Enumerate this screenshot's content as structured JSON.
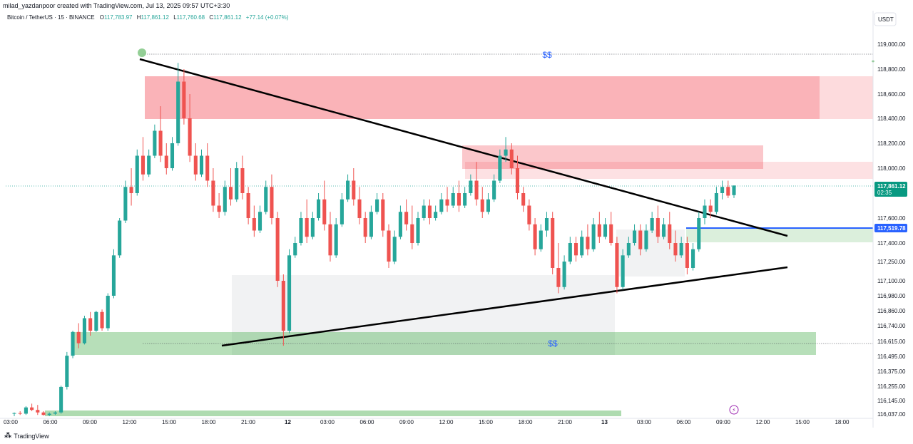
{
  "caption": "milad_yazdanpoor created with TradingView.com, Jul 13, 2025 09:57 UTC+3:30",
  "legend": {
    "symbol": "Bitcoin / TetherUS · 15 · BINANCE",
    "o_label": "O",
    "o": "117,783.97",
    "h_label": "H",
    "h": "117,861.12",
    "l_label": "L",
    "l": "117,760.68",
    "c_label": "C",
    "c": "117,861.12",
    "chg": "+77.14 (+0.07%)"
  },
  "currency": "USDT",
  "price_tag": {
    "price": "117,861.12",
    "countdown": "02:35"
  },
  "blue_line_tag": "117,519.78",
  "annotations": {
    "top_label": "$$",
    "bottom_label": "$$"
  },
  "brand": "TradingView",
  "colors": {
    "up": "#26a69a",
    "down": "#ef5350",
    "blue_line": "#2962ff",
    "supply": "#f23645",
    "demand": "#4caf50"
  },
  "chart_data": {
    "type": "candlestick",
    "y_ticks": [
      "119,000.00",
      "118,800.00",
      "118,600.00",
      "118,400.00",
      "118,200.00",
      "118,000.00",
      "117,861.12",
      "117,600.00",
      "117,519.78",
      "117,400.00",
      "117,250.00",
      "117,100.00",
      "116,980.00",
      "116,860.00",
      "116,740.00",
      "116,615.00",
      "116,495.00",
      "116,375.00",
      "116,255.00",
      "116,145.00",
      "116,037.00"
    ],
    "y_tick_values": [
      119000,
      118800,
      118600,
      118400,
      118200,
      118000,
      117861.12,
      117600,
      117519.78,
      117400,
      117250,
      117100,
      116980,
      116860,
      116740,
      116615,
      116495,
      116375,
      116255,
      116145,
      116037
    ],
    "x_ticks": [
      "03:00",
      "06:00",
      "09:00",
      "12:00",
      "15:00",
      "18:00",
      "21:00",
      "12",
      "03:00",
      "06:00",
      "09:00",
      "12:00",
      "15:00",
      "18:00",
      "21:00",
      "13",
      "03:00",
      "06:00",
      "09:00",
      "12:00",
      "15:00",
      "18:00"
    ],
    "x_start": "Jul 11 03:00",
    "x_end": "Jul 13 19:00",
    "last_price": 117861.12,
    "candles": [
      [
        116040,
        116050,
        116020,
        116045
      ],
      [
        116045,
        116060,
        116030,
        116040
      ],
      [
        116040,
        116100,
        116030,
        116090
      ],
      [
        116090,
        116120,
        116060,
        116070
      ],
      [
        116070,
        116110,
        116030,
        116050
      ],
      [
        116050,
        116060,
        116025,
        116030
      ],
      [
        116030,
        116050,
        116020,
        116040
      ],
      [
        116040,
        116060,
        116030,
        116050
      ],
      [
        116050,
        116260,
        116040,
        116250
      ],
      [
        116250,
        116530,
        116230,
        116500
      ],
      [
        116500,
        116700,
        116480,
        116690
      ],
      [
        116690,
        116760,
        116560,
        116600
      ],
      [
        116600,
        116820,
        116590,
        116800
      ],
      [
        116800,
        116850,
        116660,
        116700
      ],
      [
        116700,
        116860,
        116690,
        116850
      ],
      [
        116850,
        116870,
        116700,
        116720
      ],
      [
        116720,
        117000,
        116700,
        116980
      ],
      [
        116980,
        117350,
        116960,
        117300
      ],
      [
        117300,
        117600,
        117280,
        117580
      ],
      [
        117580,
        117900,
        117560,
        117850
      ],
      [
        117850,
        118000,
        117700,
        117800
      ],
      [
        117800,
        118150,
        117780,
        118100
      ],
      [
        118100,
        118250,
        117900,
        117950
      ],
      [
        117950,
        118150,
        117930,
        118100
      ],
      [
        118100,
        118350,
        118080,
        118300
      ],
      [
        118300,
        118500,
        118050,
        118100
      ],
      [
        118100,
        118200,
        117950,
        118000
      ],
      [
        118000,
        118250,
        117980,
        118200
      ],
      [
        118200,
        118850,
        118180,
        118700
      ],
      [
        118700,
        118800,
        118350,
        118400
      ],
      [
        118400,
        118600,
        118050,
        118100
      ],
      [
        118100,
        118200,
        117900,
        117950
      ],
      [
        117950,
        118150,
        117930,
        118100
      ],
      [
        118100,
        118200,
        117850,
        117900
      ],
      [
        117900,
        118000,
        117650,
        117700
      ],
      [
        117700,
        117800,
        117600,
        117650
      ],
      [
        117650,
        117900,
        117620,
        117850
      ],
      [
        117850,
        118000,
        117700,
        117750
      ],
      [
        117750,
        118050,
        117730,
        118000
      ],
      [
        118000,
        118100,
        117750,
        117800
      ],
      [
        117800,
        117850,
        117550,
        117600
      ],
      [
        117600,
        117700,
        117450,
        117500
      ],
      [
        117500,
        117700,
        117480,
        117650
      ],
      [
        117650,
        117900,
        117630,
        117850
      ],
      [
        117850,
        117950,
        117550,
        117600
      ],
      [
        117600,
        117650,
        117050,
        117100
      ],
      [
        117100,
        117150,
        116580,
        116700
      ],
      [
        116700,
        117350,
        116680,
        117300
      ],
      [
        117300,
        117450,
        117280,
        117400
      ],
      [
        117400,
        117650,
        117380,
        117600
      ],
      [
        117600,
        117750,
        117400,
        117450
      ],
      [
        117450,
        117650,
        117430,
        117600
      ],
      [
        117600,
        117800,
        117580,
        117750
      ],
      [
        117750,
        117900,
        117500,
        117550
      ],
      [
        117550,
        117650,
        117250,
        117300
      ],
      [
        117300,
        117600,
        117280,
        117550
      ],
      [
        117550,
        117800,
        117530,
        117750
      ],
      [
        117750,
        117950,
        117730,
        117900
      ],
      [
        117900,
        118000,
        117700,
        117750
      ],
      [
        117750,
        117850,
        117550,
        117600
      ],
      [
        117600,
        117650,
        117400,
        117450
      ],
      [
        117450,
        117700,
        117430,
        117650
      ],
      [
        117650,
        117800,
        117630,
        117750
      ],
      [
        117750,
        117800,
        117450,
        117500
      ],
      [
        117500,
        117550,
        117200,
        117250
      ],
      [
        117250,
        117500,
        117230,
        117450
      ],
      [
        117450,
        117700,
        117430,
        117650
      ],
      [
        117650,
        117750,
        117500,
        117550
      ],
      [
        117550,
        117700,
        117350,
        117400
      ],
      [
        117400,
        117650,
        117380,
        117600
      ],
      [
        117600,
        117750,
        117580,
        117700
      ],
      [
        117700,
        117750,
        117550,
        117600
      ],
      [
        117600,
        117700,
        117580,
        117650
      ],
      [
        117650,
        117800,
        117630,
        117750
      ],
      [
        117750,
        117850,
        117650,
        117700
      ],
      [
        117700,
        117850,
        117680,
        117800
      ],
      [
        117800,
        117900,
        117650,
        117700
      ],
      [
        117700,
        117850,
        117680,
        117800
      ],
      [
        117800,
        117950,
        117780,
        117900
      ],
      [
        117900,
        118050,
        117700,
        117750
      ],
      [
        117750,
        117850,
        117600,
        117650
      ],
      [
        117650,
        117800,
        117630,
        117750
      ],
      [
        117750,
        117950,
        117730,
        117900
      ],
      [
        117900,
        118150,
        117880,
        118100
      ],
      [
        118100,
        118250,
        118050,
        118150
      ],
      [
        118150,
        118200,
        117950,
        118000
      ],
      [
        118000,
        118100,
        117750,
        117800
      ],
      [
        117800,
        117850,
        117650,
        117700
      ],
      [
        117700,
        117750,
        117500,
        117550
      ],
      [
        117550,
        117600,
        117300,
        117350
      ],
      [
        117350,
        117550,
        117330,
        117500
      ],
      [
        117500,
        117650,
        117450,
        117600
      ],
      [
        117600,
        117650,
        117150,
        117200
      ],
      [
        117200,
        117400,
        117000,
        117050
      ],
      [
        117050,
        117300,
        117030,
        117250
      ],
      [
        117250,
        117450,
        117230,
        117400
      ],
      [
        117400,
        117450,
        117250,
        117300
      ],
      [
        117300,
        117500,
        117280,
        117450
      ],
      [
        117450,
        117550,
        117300,
        117350
      ],
      [
        117350,
        117600,
        117330,
        117550
      ],
      [
        117550,
        117650,
        117400,
        117450
      ],
      [
        117450,
        117600,
        117430,
        117550
      ],
      [
        117550,
        117650,
        117380,
        117400
      ],
      [
        117400,
        117450,
        117000,
        117050
      ],
      [
        117050,
        117350,
        117030,
        117300
      ],
      [
        117300,
        117450,
        117280,
        117400
      ],
      [
        117400,
        117550,
        117380,
        117500
      ],
      [
        117500,
        117550,
        117300,
        117350
      ],
      [
        117350,
        117550,
        117330,
        117500
      ],
      [
        117500,
        117650,
        117480,
        117600
      ],
      [
        117600,
        117700,
        117400,
        117450
      ],
      [
        117450,
        117600,
        117430,
        117550
      ],
      [
        117550,
        117650,
        117350,
        117400
      ],
      [
        117400,
        117500,
        117250,
        117300
      ],
      [
        117300,
        117450,
        117280,
        117400
      ],
      [
        117400,
        117450,
        117150,
        117200
      ],
      [
        117200,
        117400,
        117180,
        117350
      ],
      [
        117350,
        117650,
        117330,
        117600
      ],
      [
        117600,
        117750,
        117550,
        117700
      ],
      [
        117700,
        117750,
        117600,
        117650
      ],
      [
        117650,
        117850,
        117630,
        117800
      ],
      [
        117800,
        117900,
        117750,
        117850
      ],
      [
        117850,
        117900,
        117760,
        117780
      ],
      [
        117783.97,
        117861.12,
        117760.68,
        117861.12
      ]
    ]
  }
}
